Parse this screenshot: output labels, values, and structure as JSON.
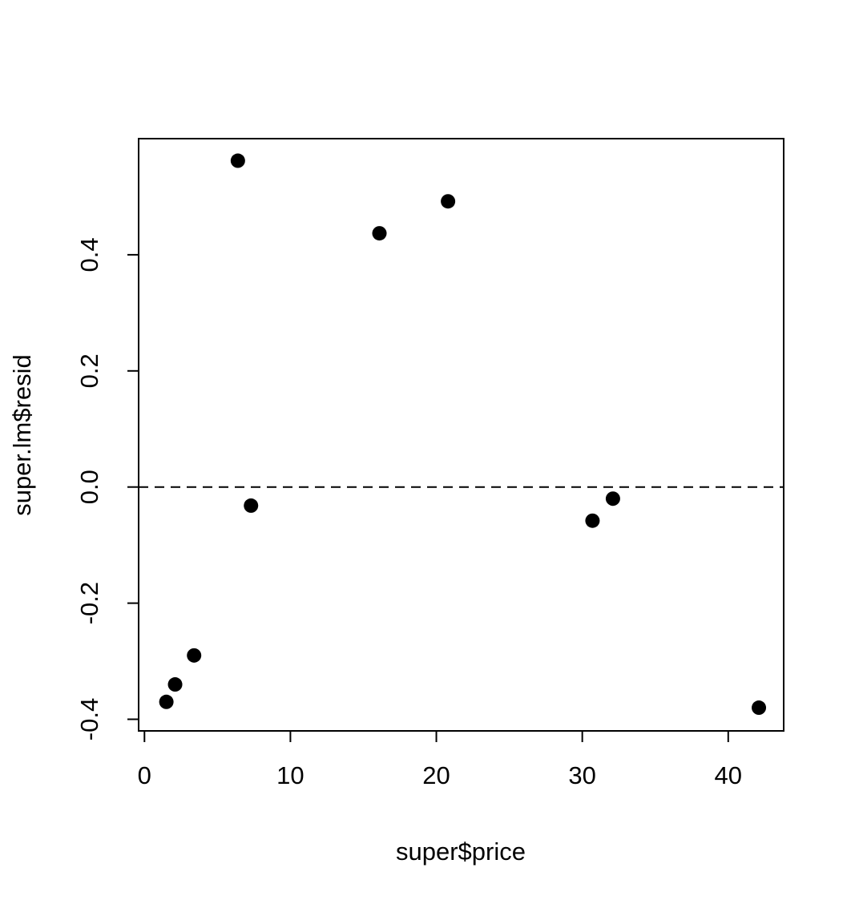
{
  "chart_data": {
    "type": "scatter",
    "title": "",
    "xlabel": "super$price",
    "ylabel": "super.lm$resid",
    "xlim": [
      -0.4,
      43.8
    ],
    "ylim": [
      -0.42,
      0.6
    ],
    "xticks": [
      0,
      10,
      20,
      30,
      40
    ],
    "yticks": [
      -0.4,
      -0.2,
      0.0,
      0.2,
      0.4
    ],
    "xtick_labels": [
      "0",
      "10",
      "20",
      "30",
      "40"
    ],
    "ytick_labels": [
      "-0.4",
      "-0.2",
      "0.0",
      "0.2",
      "0.4"
    ],
    "grid": false,
    "reference_line": {
      "y": 0.0,
      "style": "dashed"
    },
    "points": [
      {
        "x": 1.5,
        "y": -0.37
      },
      {
        "x": 2.1,
        "y": -0.34
      },
      {
        "x": 3.4,
        "y": -0.29
      },
      {
        "x": 6.4,
        "y": 0.562
      },
      {
        "x": 7.3,
        "y": -0.032
      },
      {
        "x": 16.1,
        "y": 0.437
      },
      {
        "x": 20.8,
        "y": 0.492
      },
      {
        "x": 30.7,
        "y": -0.058
      },
      {
        "x": 32.1,
        "y": -0.02
      },
      {
        "x": 42.1,
        "y": -0.38
      }
    ],
    "marker_color": "#000000"
  }
}
